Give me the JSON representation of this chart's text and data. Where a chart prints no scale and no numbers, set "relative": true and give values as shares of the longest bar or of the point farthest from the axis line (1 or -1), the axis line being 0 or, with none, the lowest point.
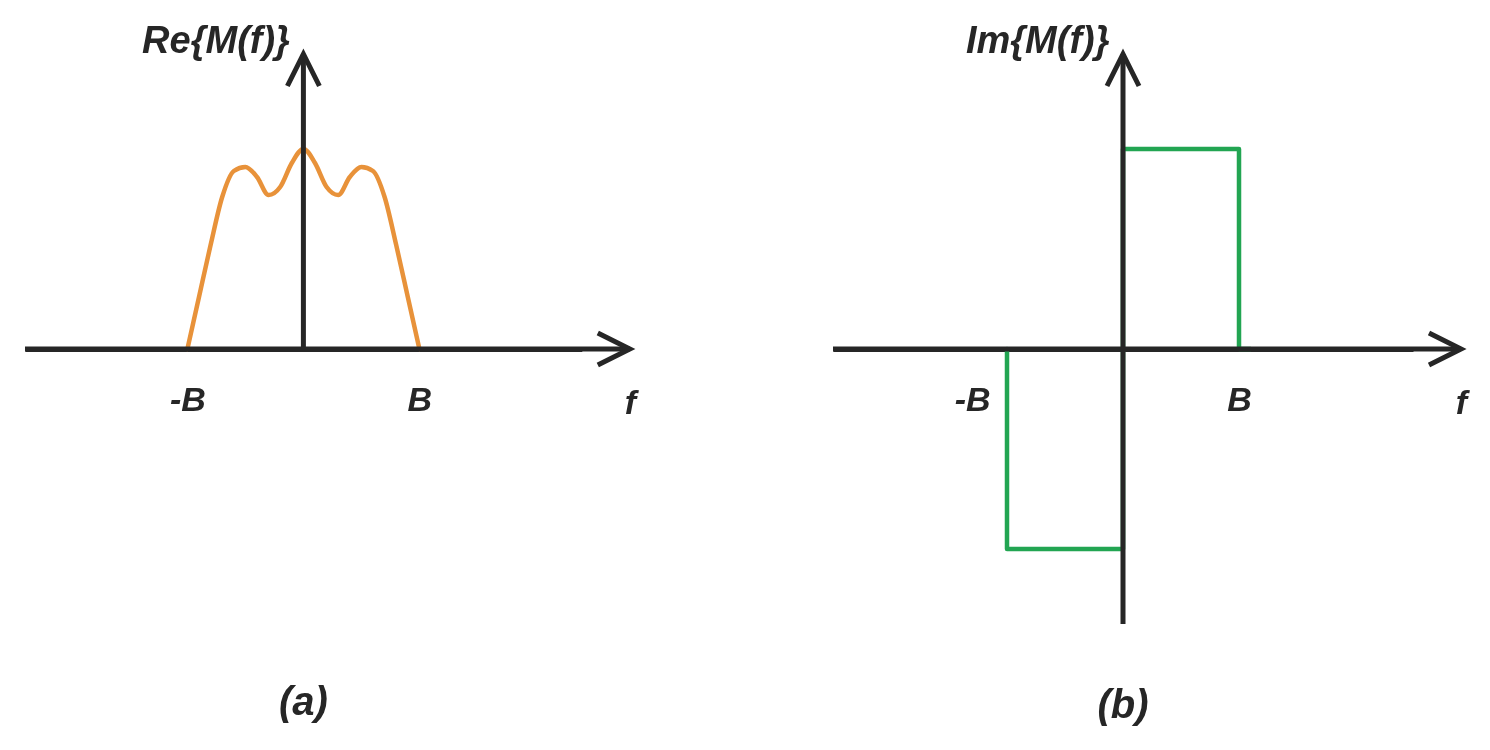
{
  "chart_data": [
    {
      "type": "line",
      "title": "(a)",
      "ylabel": "Re{M(f)}",
      "xlabel": "f",
      "relative": true,
      "categories": [
        null,
        null,
        null,
        null,
        null,
        null,
        null,
        null,
        null,
        null,
        null,
        null,
        null,
        null,
        "-B",
        null,
        null,
        null,
        null,
        null,
        null,
        null,
        null,
        null,
        null,
        null,
        null,
        null,
        null,
        null,
        null,
        null,
        null,
        null,
        "B",
        null,
        null,
        null,
        null,
        null,
        null,
        null,
        null,
        null,
        null,
        null,
        null,
        null,
        null
      ],
      "series": [
        {
          "color": "#e8923a",
          "values": [
            null,
            null,
            null,
            null,
            null,
            null,
            null,
            null,
            null,
            null,
            null,
            null,
            null,
            null,
            0,
            0.26,
            0.52,
            0.76,
            0.89,
            0.91,
            0.86,
            0.77,
            0.81,
            0.93,
            1,
            0.93,
            0.81,
            0.77,
            0.86,
            0.91,
            0.89,
            0.76,
            0.52,
            0.26,
            0,
            null,
            null,
            null,
            null,
            null,
            null,
            null,
            null,
            null,
            null,
            null,
            null,
            null,
            null
          ]
        }
      ]
    },
    {
      "type": "step",
      "title": "(b)",
      "ylabel": "Im{M(f)}",
      "xlabel": "f",
      "relative": true,
      "categories": [
        null,
        null,
        null,
        null,
        null,
        null,
        null,
        null,
        null,
        null,
        null,
        null,
        "-B",
        null,
        null,
        null,
        null,
        null,
        null,
        null,
        null,
        null,
        null,
        null,
        null,
        null,
        null,
        null,
        null,
        null,
        null,
        null,
        null,
        null,
        null,
        "B",
        null,
        null,
        null,
        null,
        null,
        null,
        null,
        null,
        null,
        null,
        null,
        null,
        null,
        null,
        null
      ],
      "series": [
        {
          "color": "#22a552",
          "values": [
            null,
            null,
            null,
            null,
            null,
            null,
            null,
            null,
            null,
            null,
            null,
            null,
            null,
            null,
            null,
            0,
            -1,
            -1,
            -1,
            -1,
            -1,
            -1,
            -1,
            -1,
            -1,
            -1,
            1,
            1,
            1,
            1,
            1,
            1,
            1,
            1,
            1,
            1,
            0,
            null,
            null,
            null,
            null,
            null,
            null,
            null,
            null,
            null,
            null,
            null,
            null,
            null,
            null
          ]
        }
      ]
    }
  ]
}
